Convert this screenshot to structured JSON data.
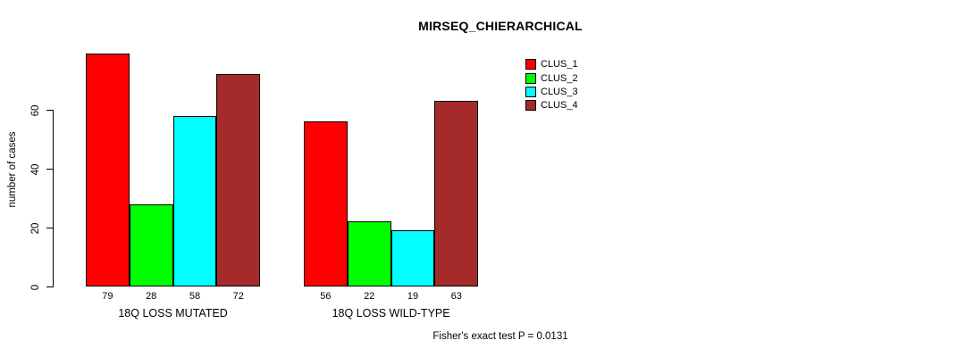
{
  "chart_data": {
    "type": "bar",
    "title": "MIRSEQ_CHIERARCHICAL",
    "ylabel": "number of cases",
    "xlabel": "",
    "yticks": [
      0,
      20,
      40,
      60
    ],
    "ylim": [
      0,
      60
    ],
    "grid": false,
    "legend_position": "top-right",
    "series": [
      "CLUS_1",
      "CLUS_2",
      "CLUS_3",
      "CLUS_4"
    ],
    "colors": [
      "#FF0000",
      "#00FF00",
      "#00FFFF",
      "#A52A2A"
    ],
    "categories": [
      "18Q LOSS MUTATED",
      "18Q LOSS WILD-TYPE"
    ],
    "groups": [
      {
        "label": "18Q LOSS MUTATED",
        "values": [
          79,
          28,
          58,
          72
        ]
      },
      {
        "label": "18Q LOSS WILD-TYPE",
        "values": [
          56,
          22,
          19,
          63
        ]
      }
    ],
    "annotation": "Fisher's exact test P = 0.0131"
  }
}
